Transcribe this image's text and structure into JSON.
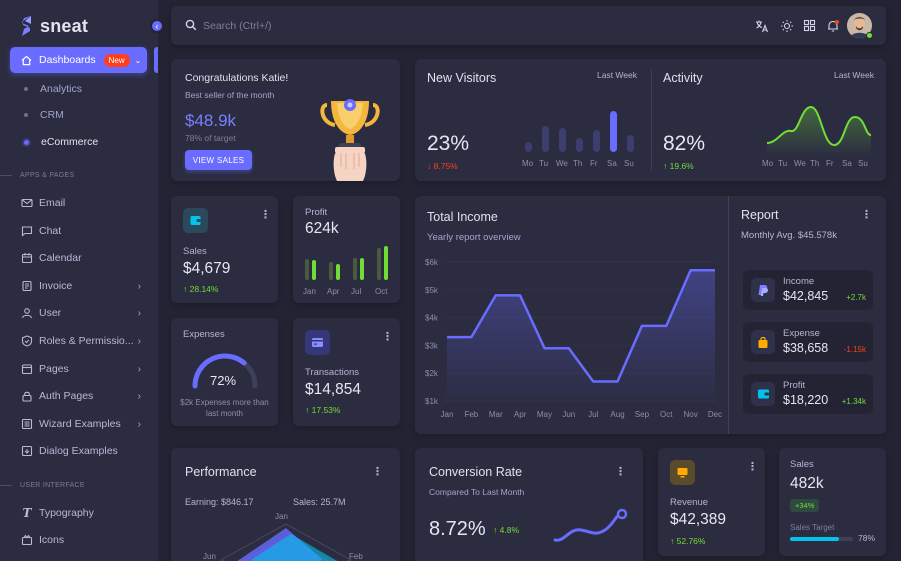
{
  "brand": {
    "name": "sneat"
  },
  "sidebar": {
    "active": {
      "label": "Dashboards",
      "badge": "New"
    },
    "subitems": [
      {
        "label": "Analytics"
      },
      {
        "label": "CRM"
      },
      {
        "label": "eCommerce"
      }
    ],
    "section_apps": "APPS & PAGES",
    "apps": [
      {
        "label": "Email",
        "icon": "mail-icon"
      },
      {
        "label": "Chat",
        "icon": "chat-icon"
      },
      {
        "label": "Calendar",
        "icon": "calendar-icon"
      },
      {
        "label": "Invoice",
        "icon": "invoice-icon"
      },
      {
        "label": "User",
        "icon": "user-icon"
      },
      {
        "label": "Roles & Permissio...",
        "icon": "shield-icon"
      },
      {
        "label": "Pages",
        "icon": "pages-icon"
      },
      {
        "label": "Auth Pages",
        "icon": "lock-icon"
      },
      {
        "label": "Wizard Examples",
        "icon": "wizard-icon"
      },
      {
        "label": "Dialog Examples",
        "icon": "dialog-icon"
      }
    ],
    "section_ui": "USER INTERFACE",
    "ui": [
      {
        "label": "Typography",
        "icon": "typography-icon"
      },
      {
        "label": "Icons",
        "icon": "icons-icon"
      }
    ]
  },
  "topbar": {
    "search_placeholder": "Search (Ctrl+/)"
  },
  "congrats": {
    "title": "Congratulations Katie!",
    "subtitle": "Best seller of the month",
    "amount": "$48.9k",
    "target": "78% of target",
    "button": "VIEW SALES"
  },
  "visitors": {
    "title": "New Visitors",
    "period": "Last Week",
    "value": "23%",
    "change": "8.75%",
    "days": [
      "Mo",
      "Tu",
      "We",
      "Th",
      "Fr",
      "Sa",
      "Su"
    ],
    "bars": [
      0.2,
      0.55,
      0.5,
      0.3,
      0.45,
      0.85,
      0.35
    ]
  },
  "activity": {
    "title": "Activity",
    "period": "Last Week",
    "value": "82%",
    "change": "19.6%",
    "days": [
      "Mo",
      "Tu",
      "We",
      "Th",
      "Fr",
      "Sa",
      "Su"
    ]
  },
  "sales_card": {
    "label": "Sales",
    "value": "$4,679",
    "change": "28.14%"
  },
  "profit_card": {
    "label": "Profit",
    "value": "624k",
    "months": [
      "Jan",
      "Apr",
      "Jul",
      "Oct"
    ]
  },
  "expenses": {
    "label": "Expenses",
    "percent": 72,
    "percent_label": "72%",
    "note": "$2k Expenses more than last month"
  },
  "transactions": {
    "label": "Transactions",
    "value": "$14,854",
    "change": "17.53%"
  },
  "income": {
    "title": "Total Income",
    "subtitle": "Yearly report overview"
  },
  "report": {
    "title": "Report",
    "subtitle": "Monthly Avg. $45.578k",
    "items": [
      {
        "label": "Income",
        "value": "$42,845",
        "change": "+2.7k"
      },
      {
        "label": "Expense",
        "value": "$38,658",
        "change": "-1.15k"
      },
      {
        "label": "Profit",
        "value": "$18,220",
        "change": "+1.34k"
      }
    ]
  },
  "performance": {
    "title": "Performance",
    "earning": "Earning: $846.17",
    "sales": "Sales: 25.7M",
    "labels": [
      "Jan",
      "Jun",
      "Feb"
    ]
  },
  "conversion": {
    "title": "Conversion Rate",
    "subtitle": "Compared To Last Month",
    "value": "8.72%",
    "change": "4.8%"
  },
  "revenue": {
    "label": "Revenue",
    "value": "$42,389",
    "change": "52.76%"
  },
  "sales_target": {
    "label": "Sales",
    "value": "482k",
    "badge": "+34%",
    "target_label": "Sales Target",
    "percent": 78,
    "percent_label": "78%"
  },
  "colors": {
    "primary": "#696cff",
    "success": "#71dd37",
    "danger": "#ff3e1d",
    "warning": "#ffab00",
    "info": "#03c3ec",
    "card": "#2b2c40",
    "bg": "#232333"
  },
  "chart_data": [
    {
      "type": "area",
      "x": [
        "Jan",
        "Feb",
        "Mar",
        "Apr",
        "May",
        "Jun",
        "Jul",
        "Aug",
        "Sep",
        "Oct",
        "Nov",
        "Dec"
      ],
      "y_ticks": [
        "$1k",
        "$2k",
        "$3k",
        "$4k",
        "$5k",
        "$6k"
      ],
      "ylim": [
        1000,
        6000
      ],
      "series": [
        {
          "values": [
            3300,
            3300,
            4800,
            4800,
            2900,
            2900,
            1700,
            1700,
            3700,
            3700,
            5700,
            5700
          ]
        }
      ]
    },
    {
      "type": "bar",
      "categories": [
        "Jan",
        "Apr",
        "Jul",
        "Oct"
      ],
      "series": [
        {
          "values": [
            0.55,
            0.45,
            0.6,
            0.95
          ]
        }
      ]
    }
  ]
}
